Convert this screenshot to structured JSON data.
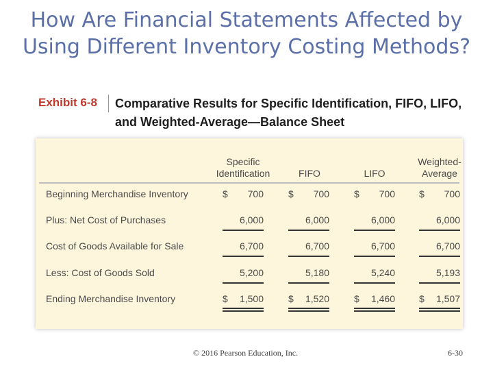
{
  "slide": {
    "title": "How Are Financial Statements Affected by Using Different Inventory Costing Methods?"
  },
  "exhibit": {
    "label": "Exhibit 6-8",
    "title": "Comparative Results for Specific Identification, FIFO, LIFO, and Weighted-Average—Balance Sheet"
  },
  "table": {
    "columns": [
      {
        "line1": "Specific",
        "line2": "Identification"
      },
      {
        "line1": "",
        "line2": "FIFO"
      },
      {
        "line1": "",
        "line2": "LIFO"
      },
      {
        "line1": "Weighted-",
        "line2": "Average"
      }
    ],
    "rows": [
      {
        "label": "Beginning Merchandise Inventory",
        "values": [
          {
            "cur": "$",
            "num": "700"
          },
          {
            "cur": "$",
            "num": "700"
          },
          {
            "cur": "$",
            "num": "700"
          },
          {
            "cur": "$",
            "num": "700"
          }
        ]
      },
      {
        "label": "Plus: Net Cost of Purchases",
        "values": [
          {
            "cur": "",
            "num": "6,000"
          },
          {
            "cur": "",
            "num": "6,000"
          },
          {
            "cur": "",
            "num": "6,000"
          },
          {
            "cur": "",
            "num": "6,000"
          }
        ]
      },
      {
        "label": "Cost of Goods Available for Sale",
        "values": [
          {
            "cur": "",
            "num": "6,700"
          },
          {
            "cur": "",
            "num": "6,700"
          },
          {
            "cur": "",
            "num": "6,700"
          },
          {
            "cur": "",
            "num": "6,700"
          }
        ]
      },
      {
        "label": "Less: Cost of Goods Sold",
        "values": [
          {
            "cur": "",
            "num": "5,200"
          },
          {
            "cur": "",
            "num": "5,180"
          },
          {
            "cur": "",
            "num": "5,240"
          },
          {
            "cur": "",
            "num": "5,193"
          }
        ]
      },
      {
        "label": "Ending Merchandise Inventory",
        "values": [
          {
            "cur": "$",
            "num": "1,500"
          },
          {
            "cur": "$",
            "num": "1,520"
          },
          {
            "cur": "$",
            "num": "1,460"
          },
          {
            "cur": "$",
            "num": "1,507"
          }
        ]
      }
    ]
  },
  "footer": {
    "copyright": "© 2016 Pearson Education, Inc.",
    "page": "6-30"
  }
}
